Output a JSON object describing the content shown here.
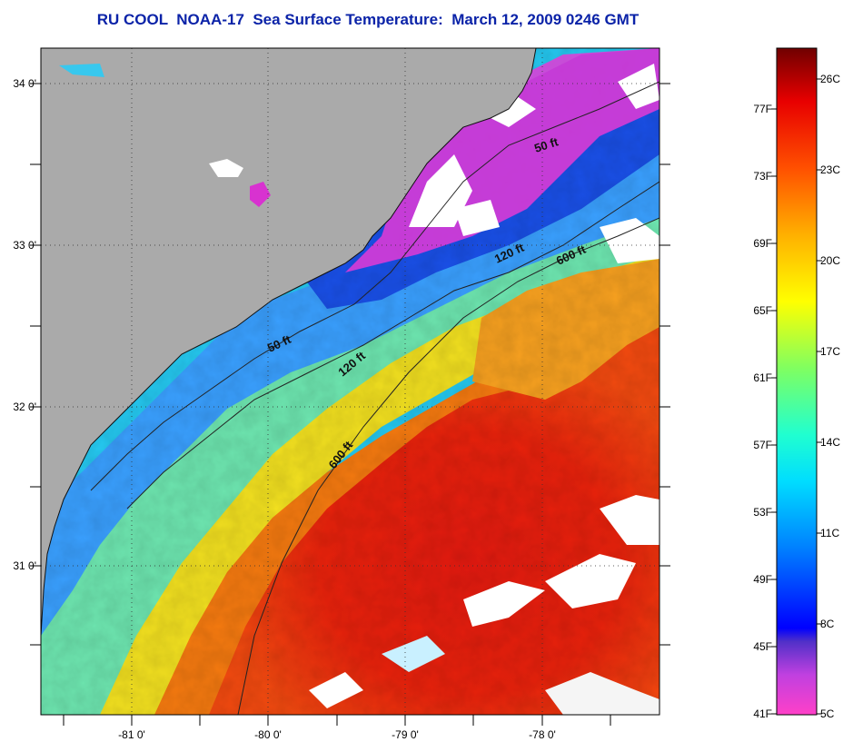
{
  "title": "RU COOL  NOAA-17  Sea Surface Temperature:  March 12, 2009 0246 GMT",
  "map": {
    "lat_ticks": [
      "34 0'",
      "33 0'",
      "32 0'",
      "31 0'"
    ],
    "lon_ticks": [
      "-81 0'",
      "-80 0'",
      "-79 0'",
      "-78 0'"
    ],
    "isobaths": [
      "50 ft",
      "50 ft",
      "120 ft",
      "120 ft",
      "600 ft",
      "600 ft"
    ],
    "colors": {
      "land": "#aaaaaa",
      "cloud": "#ffffff",
      "warm": "#e8160c",
      "cold": "#2e6cf0"
    }
  },
  "colorbar": {
    "fahrenheit_labels": [
      "77F",
      "73F",
      "69F",
      "65F",
      "61F",
      "57F",
      "53F",
      "49F",
      "45F",
      "41F"
    ],
    "celsius_labels": [
      "26C",
      "23C",
      "20C",
      "17C",
      "14C",
      "11C",
      "8C",
      "5C"
    ],
    "stops": [
      "#ff40c8",
      "#b040e0",
      "#4020c0",
      "#0000ff",
      "#0080ff",
      "#00d0ff",
      "#00ffff",
      "#60ff90",
      "#ffff00",
      "#ffb000",
      "#ff5000",
      "#ee0000",
      "#800000"
    ]
  }
}
